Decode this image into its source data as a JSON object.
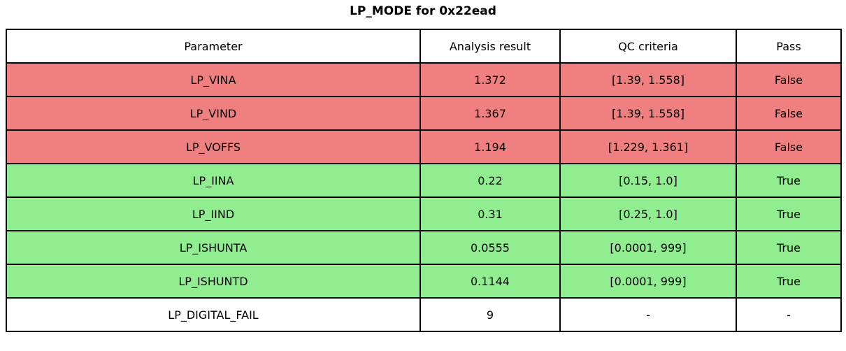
{
  "title": "LP_MODE for 0x22ead",
  "colors": {
    "fail_row": "#f08080",
    "pass_row": "#90ee90",
    "neutral_row": "#ffffff",
    "border": "#000000",
    "text": "#000000"
  },
  "chart_data": {
    "type": "table",
    "title": "LP_MODE for 0x22ead",
    "columns": [
      "Parameter",
      "Analysis result",
      "QC criteria",
      "Pass"
    ],
    "rows": [
      {
        "parameter": "LP_VINA",
        "analysis_result": "1.372",
        "qc_criteria": "[1.39, 1.558]",
        "pass": "False",
        "status": "fail"
      },
      {
        "parameter": "LP_VIND",
        "analysis_result": "1.367",
        "qc_criteria": "[1.39, 1.558]",
        "pass": "False",
        "status": "fail"
      },
      {
        "parameter": "LP_VOFFS",
        "analysis_result": "1.194",
        "qc_criteria": "[1.229, 1.361]",
        "pass": "False",
        "status": "fail"
      },
      {
        "parameter": "LP_IINA",
        "analysis_result": "0.22",
        "qc_criteria": "[0.15, 1.0]",
        "pass": "True",
        "status": "pass"
      },
      {
        "parameter": "LP_IIND",
        "analysis_result": "0.31",
        "qc_criteria": "[0.25, 1.0]",
        "pass": "True",
        "status": "pass"
      },
      {
        "parameter": "LP_ISHUNTA",
        "analysis_result": "0.0555",
        "qc_criteria": "[0.0001, 999]",
        "pass": "True",
        "status": "pass"
      },
      {
        "parameter": "LP_ISHUNTD",
        "analysis_result": "0.1144",
        "qc_criteria": "[0.0001, 999]",
        "pass": "True",
        "status": "pass"
      },
      {
        "parameter": "LP_DIGITAL_FAIL",
        "analysis_result": "9",
        "qc_criteria": "-",
        "pass": "-",
        "status": "neutral"
      }
    ]
  }
}
